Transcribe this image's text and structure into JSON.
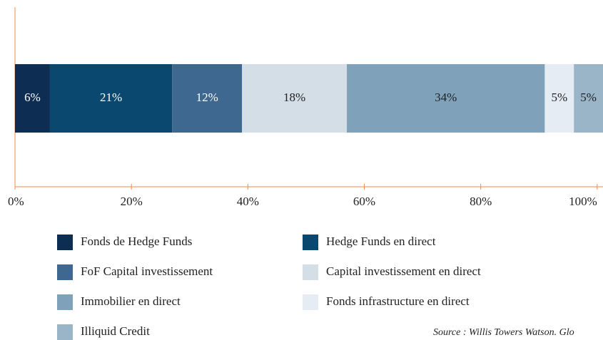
{
  "chart_data": {
    "type": "stacked_bar_horizontal",
    "series": [
      {
        "name": "Fonds de Hedge Funds",
        "color": "#0d2d52",
        "values": [
          6
        ],
        "value_labels": [
          "6%"
        ]
      },
      {
        "name": "Hedge Funds en direct",
        "color": "#0b4870",
        "values": [
          21
        ],
        "value_labels": [
          "21%"
        ]
      },
      {
        "name": "FoF Capital investissement",
        "color": "#3e6890",
        "values": [
          12
        ],
        "value_labels": [
          "12%"
        ]
      },
      {
        "name": "Capital investissement en direct",
        "color": "#d3dee7",
        "values": [
          18
        ],
        "value_labels": [
          "18%"
        ]
      },
      {
        "name": "Immobilier en direct",
        "color": "#7fa2ba",
        "values": [
          34
        ],
        "value_labels": [
          "34%"
        ]
      },
      {
        "name": "Fonds infrastructure en direct",
        "color": "#e6ecf3",
        "values": [
          5
        ],
        "value_labels": [
          "5%"
        ]
      },
      {
        "name": "Illiquid Credit",
        "color": "#9ab4c8",
        "values": [
          5
        ],
        "value_labels": [
          "5%"
        ]
      }
    ],
    "xlim": [
      0,
      101
    ],
    "xticks": [
      {
        "value": 0,
        "label": "0%"
      },
      {
        "value": 20,
        "label": "20%"
      },
      {
        "value": 40,
        "label": "40%"
      },
      {
        "value": 60,
        "label": "60%"
      },
      {
        "value": 80,
        "label": "80%"
      },
      {
        "value": 100,
        "label": "100%"
      }
    ],
    "axis_color": "#f08a50",
    "source": "Source : Willis Towers Watson. Glo"
  }
}
